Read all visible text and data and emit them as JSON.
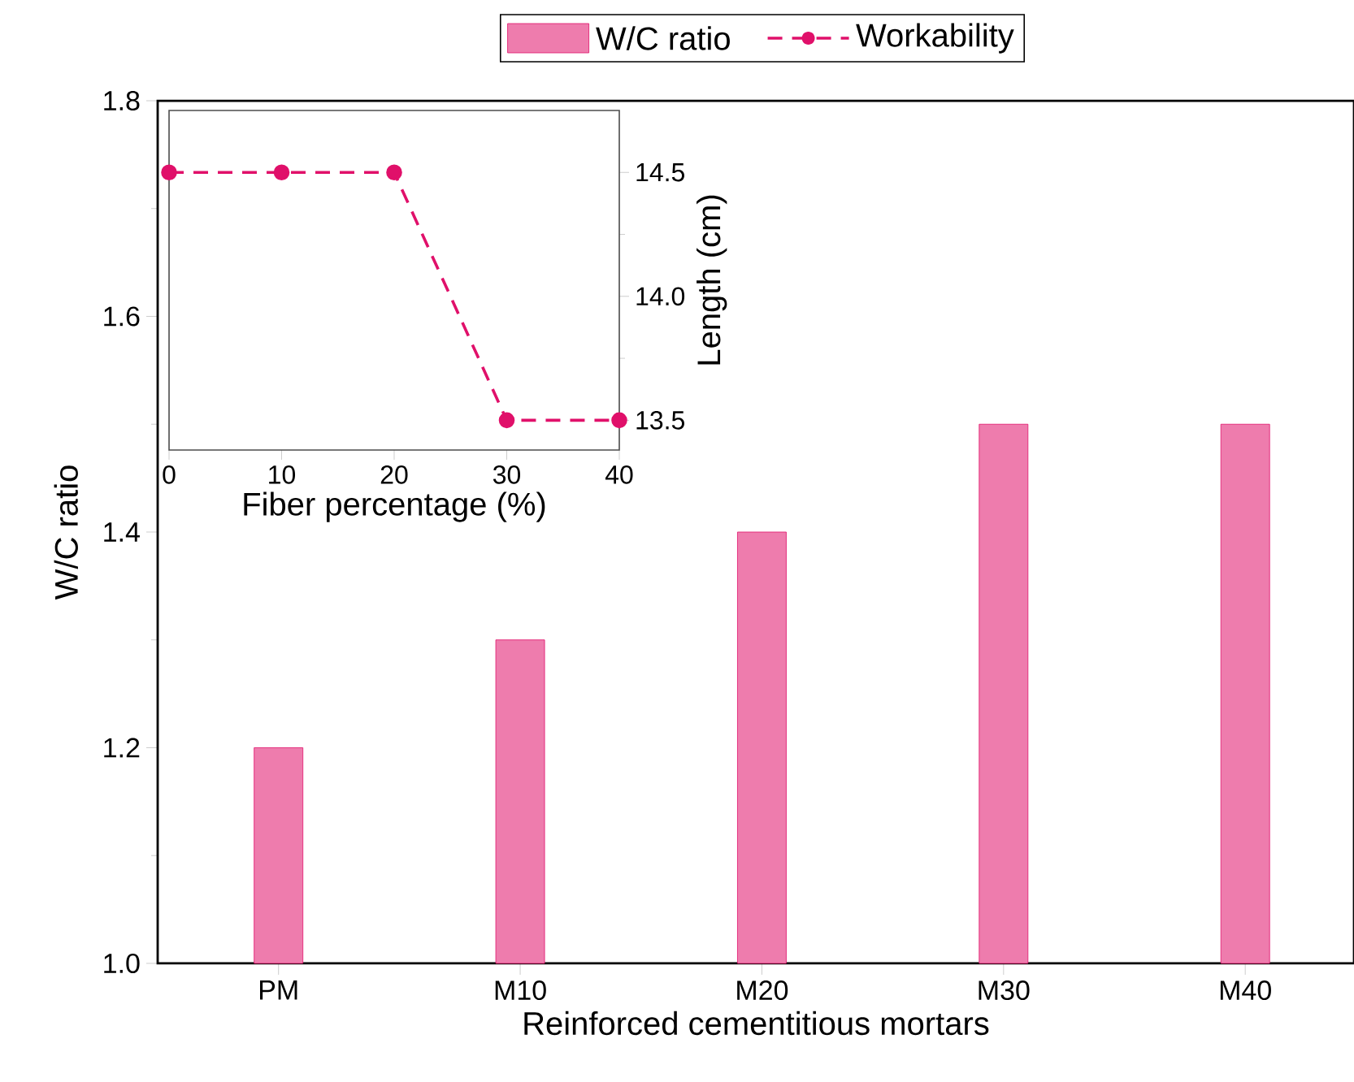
{
  "chart_data": [
    {
      "type": "bar",
      "xlabel": "Reinforced cementitious mortars",
      "ylabel": "W/C ratio",
      "categories": [
        "PM",
        "M10",
        "M20",
        "M30",
        "M40"
      ],
      "series": [
        {
          "name": "W/C ratio",
          "color": "#e0106a",
          "values": [
            1.2,
            1.3,
            1.4,
            1.5,
            1.5
          ]
        }
      ],
      "ylim": [
        1.0,
        1.8
      ],
      "yticks": [
        {
          "value": 1.0,
          "label": "1.0"
        },
        1.2,
        1.4,
        1.6,
        1.8
      ],
      "legend": "top",
      "grid": false
    },
    {
      "type": "line",
      "xlabel": "Fiber percentage (%)",
      "ylabel": "Length (cm)",
      "x": [
        0,
        10,
        20,
        30,
        40
      ],
      "series": [
        {
          "name": "Workability",
          "color": "#e0106a",
          "values": [
            14.5,
            14.5,
            14.5,
            13.5,
            13.5
          ]
        }
      ],
      "xlim": [
        0,
        40
      ],
      "xticks": [
        0,
        10,
        20,
        30,
        40
      ],
      "ylim": [
        13.38,
        14.75
      ],
      "yticks": [
        13.5,
        {
          "value": 14.0,
          "label": "14.0"
        },
        14.5
      ],
      "marker": "circle",
      "line_style": "dashed",
      "legend": "top",
      "grid": false
    }
  ]
}
